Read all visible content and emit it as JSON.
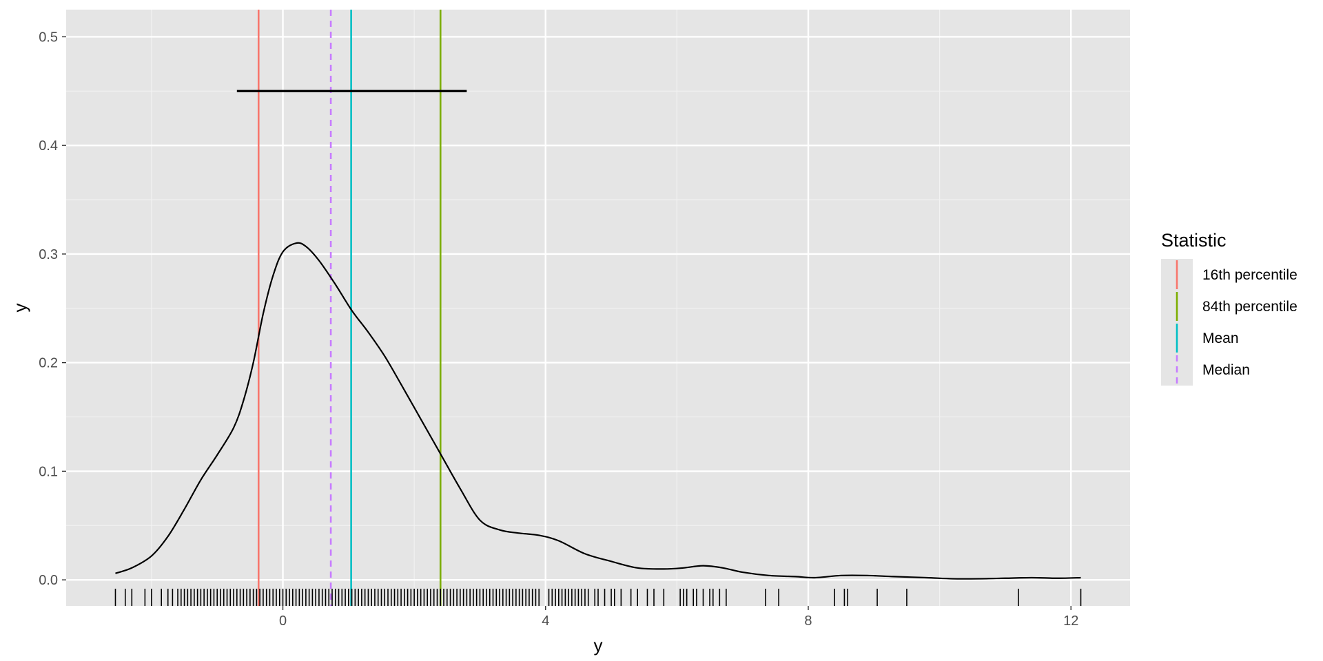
{
  "chart_data": {
    "type": "line",
    "title": "",
    "xlabel": "y",
    "ylabel": "y",
    "xlim": [
      -3.3,
      12.9
    ],
    "ylim": [
      -0.024,
      0.525
    ],
    "x_ticks": [
      0,
      4,
      8,
      12
    ],
    "x_minor_ticks": [
      -2,
      2,
      6,
      10
    ],
    "y_ticks": [
      0.0,
      0.1,
      0.2,
      0.3,
      0.4,
      0.5
    ],
    "y_tick_labels": [
      "0.0",
      "0.1",
      "0.2",
      "0.3",
      "0.4",
      "0.5"
    ],
    "grid": true,
    "panel_background": "#e5e5e5",
    "density": {
      "color": "#000000",
      "points": [
        [
          -2.55,
          0.006
        ],
        [
          -2.3,
          0.011
        ],
        [
          -2.0,
          0.022
        ],
        [
          -1.75,
          0.04
        ],
        [
          -1.5,
          0.065
        ],
        [
          -1.25,
          0.092
        ],
        [
          -1.0,
          0.115
        ],
        [
          -0.75,
          0.14
        ],
        [
          -0.6,
          0.165
        ],
        [
          -0.45,
          0.2
        ],
        [
          -0.3,
          0.245
        ],
        [
          -0.15,
          0.28
        ],
        [
          0.0,
          0.302
        ],
        [
          0.2,
          0.31
        ],
        [
          0.35,
          0.307
        ],
        [
          0.55,
          0.294
        ],
        [
          0.8,
          0.272
        ],
        [
          1.05,
          0.248
        ],
        [
          1.3,
          0.228
        ],
        [
          1.55,
          0.206
        ],
        [
          1.8,
          0.18
        ],
        [
          2.1,
          0.148
        ],
        [
          2.4,
          0.116
        ],
        [
          2.7,
          0.084
        ],
        [
          3.0,
          0.055
        ],
        [
          3.3,
          0.046
        ],
        [
          3.6,
          0.043
        ],
        [
          3.9,
          0.041
        ],
        [
          4.2,
          0.036
        ],
        [
          4.6,
          0.024
        ],
        [
          5.0,
          0.017
        ],
        [
          5.4,
          0.011
        ],
        [
          5.8,
          0.01
        ],
        [
          6.1,
          0.011
        ],
        [
          6.4,
          0.013
        ],
        [
          6.7,
          0.011
        ],
        [
          7.0,
          0.007
        ],
        [
          7.4,
          0.004
        ],
        [
          7.8,
          0.003
        ],
        [
          8.1,
          0.002
        ],
        [
          8.5,
          0.004
        ],
        [
          8.9,
          0.004
        ],
        [
          9.3,
          0.003
        ],
        [
          9.8,
          0.002
        ],
        [
          10.2,
          0.001
        ],
        [
          10.6,
          0.001
        ],
        [
          11.0,
          0.0015
        ],
        [
          11.4,
          0.002
        ],
        [
          11.8,
          0.0015
        ],
        [
          12.15,
          0.002
        ]
      ]
    },
    "interval_segment": {
      "x_start": -0.7,
      "x_end": 2.8,
      "y": 0.45,
      "color": "#000000"
    },
    "vlines": [
      {
        "name": "16th percentile",
        "x": -0.37,
        "color": "#F8766D",
        "dashed": false
      },
      {
        "name": "84th percentile",
        "x": 2.4,
        "color": "#7CAE00",
        "dashed": false
      },
      {
        "name": "Mean",
        "x": 1.04,
        "color": "#00BFC4",
        "dashed": false
      },
      {
        "name": "Median",
        "x": 0.73,
        "color": "#C77CFF",
        "dashed": true
      }
    ],
    "rug": {
      "color": "#000000",
      "x": [
        -2.55,
        -2.4,
        -2.3,
        -2.1,
        -2.0,
        -1.85,
        -1.75,
        -1.68,
        -1.6,
        -1.55,
        -1.5,
        -1.45,
        -1.4,
        -1.35,
        -1.3,
        -1.25,
        -1.2,
        -1.15,
        -1.1,
        -1.05,
        -1.0,
        -0.95,
        -0.9,
        -0.85,
        -0.8,
        -0.75,
        -0.7,
        -0.65,
        -0.6,
        -0.55,
        -0.5,
        -0.45,
        -0.4,
        -0.35,
        -0.3,
        -0.25,
        -0.2,
        -0.15,
        -0.1,
        -0.05,
        0.0,
        0.05,
        0.1,
        0.15,
        0.2,
        0.25,
        0.3,
        0.35,
        0.4,
        0.45,
        0.5,
        0.55,
        0.6,
        0.65,
        0.7,
        0.75,
        0.8,
        0.85,
        0.9,
        0.95,
        1.0,
        1.05,
        1.1,
        1.15,
        1.2,
        1.25,
        1.3,
        1.35,
        1.4,
        1.45,
        1.5,
        1.55,
        1.6,
        1.65,
        1.7,
        1.75,
        1.8,
        1.85,
        1.9,
        1.95,
        2.0,
        2.05,
        2.1,
        2.15,
        2.2,
        2.25,
        2.3,
        2.35,
        2.4,
        2.45,
        2.5,
        2.55,
        2.6,
        2.65,
        2.7,
        2.75,
        2.8,
        2.85,
        2.9,
        2.95,
        3.0,
        3.05,
        3.1,
        3.15,
        3.2,
        3.25,
        3.3,
        3.35,
        3.4,
        3.45,
        3.5,
        3.55,
        3.6,
        3.65,
        3.7,
        3.75,
        3.8,
        3.85,
        3.9,
        4.05,
        4.1,
        4.15,
        4.2,
        4.25,
        4.3,
        4.35,
        4.4,
        4.45,
        4.5,
        4.55,
        4.6,
        4.65,
        4.75,
        4.8,
        4.9,
        5.0,
        5.05,
        5.15,
        5.3,
        5.4,
        5.55,
        5.65,
        5.8,
        6.05,
        6.1,
        6.15,
        6.25,
        6.3,
        6.4,
        6.5,
        6.55,
        6.65,
        6.75,
        7.35,
        7.55,
        8.4,
        8.55,
        8.6,
        9.05,
        9.5,
        11.2,
        12.15
      ]
    },
    "legend": {
      "title": "Statistic",
      "position": "right",
      "entries": [
        {
          "label": "16th percentile",
          "color": "#F8766D",
          "dashed": false
        },
        {
          "label": "84th percentile",
          "color": "#7CAE00",
          "dashed": false
        },
        {
          "label": "Mean",
          "color": "#00BFC4",
          "dashed": false
        },
        {
          "label": "Median",
          "color": "#C77CFF",
          "dashed": true
        }
      ]
    }
  }
}
